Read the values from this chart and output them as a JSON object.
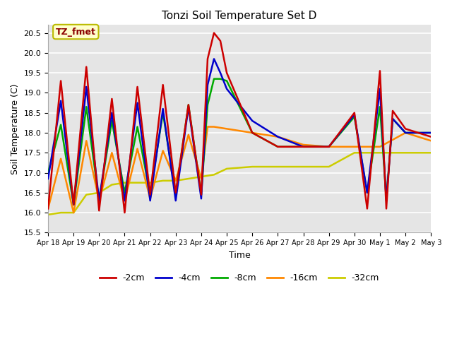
{
  "title": "Tonzi Soil Temperature Set D",
  "xlabel": "Time",
  "ylabel": "Soil Temperature (C)",
  "ylim": [
    15.5,
    20.7
  ],
  "background_color": "#e5e5e5",
  "annotation_text": "TZ_fmet",
  "annotation_bg": "#ffffcc",
  "annotation_border": "#bbbb00",
  "legend_entries": [
    "-2cm",
    "-4cm",
    "-8cm",
    "-16cm",
    "-32cm"
  ],
  "legend_colors": [
    "#cc0000",
    "#0000cc",
    "#00aa00",
    "#ff8800",
    "#cccc00"
  ],
  "xtick_labels": [
    "Apr 18",
    "Apr 19",
    "Apr 20",
    "Apr 21",
    "Apr 22",
    "Apr 23",
    "Apr 24",
    "Apr 25",
    "Apr 26",
    "Apr 27",
    "Apr 28",
    "Apr 29",
    "Apr 30",
    "May 1",
    "May 2",
    "May 3"
  ],
  "red_x": [
    0,
    0.5,
    1,
    1.5,
    2,
    2.5,
    3,
    3.5,
    4,
    4.5,
    5,
    5.5,
    6,
    6.25,
    6.5,
    6.75,
    7,
    8,
    9,
    10,
    11,
    12,
    12.5,
    13,
    13.25,
    13.5,
    14,
    14.5,
    15
  ],
  "red_y": [
    16.1,
    19.3,
    16.2,
    19.65,
    16.05,
    18.85,
    16.0,
    19.15,
    16.45,
    19.2,
    16.5,
    18.7,
    16.45,
    19.85,
    20.5,
    20.3,
    19.5,
    18.0,
    17.65,
    17.65,
    17.65,
    18.5,
    16.1,
    19.55,
    16.1,
    18.55,
    18.1,
    18.0,
    17.9
  ],
  "blue_x": [
    0,
    0.5,
    1,
    1.5,
    2,
    2.5,
    3,
    3.5,
    4,
    4.5,
    5,
    5.5,
    6,
    6.25,
    6.5,
    6.75,
    7,
    8,
    9,
    10,
    11,
    12,
    12.5,
    13,
    13.25,
    13.5,
    14,
    14.5,
    15
  ],
  "blue_y": [
    16.85,
    18.8,
    16.2,
    19.15,
    16.3,
    18.5,
    16.3,
    18.75,
    16.3,
    18.6,
    16.3,
    18.65,
    16.35,
    19.2,
    19.85,
    19.5,
    19.1,
    18.3,
    17.9,
    17.65,
    17.65,
    18.45,
    16.5,
    19.1,
    16.3,
    18.35,
    18.0,
    18.0,
    18.0
  ],
  "green_x": [
    0,
    0.5,
    1,
    1.5,
    2,
    2.5,
    3,
    3.5,
    4,
    4.5,
    5,
    5.5,
    6,
    6.25,
    6.5,
    6.75,
    7,
    8,
    9,
    10,
    11,
    12,
    12.5,
    13,
    13.25,
    13.5,
    14,
    14.5,
    15
  ],
  "green_y": [
    17.0,
    18.2,
    16.2,
    18.65,
    16.3,
    18.3,
    16.5,
    18.15,
    16.45,
    18.5,
    16.45,
    18.7,
    16.45,
    18.7,
    19.35,
    19.35,
    19.3,
    18.0,
    17.65,
    17.65,
    17.65,
    18.4,
    16.5,
    18.65,
    16.35,
    18.35,
    18.0,
    18.0,
    18.0
  ],
  "orange_x": [
    0,
    0.5,
    1,
    1.5,
    2,
    2.5,
    3,
    3.5,
    4,
    4.5,
    5,
    5.5,
    6,
    6.25,
    6.5,
    7,
    8,
    9,
    10,
    11,
    12,
    13,
    14,
    15
  ],
  "orange_y": [
    16.1,
    17.35,
    16.0,
    17.8,
    16.3,
    17.5,
    16.3,
    17.6,
    16.35,
    17.55,
    16.8,
    17.95,
    16.85,
    18.15,
    18.15,
    18.1,
    18.0,
    17.9,
    17.7,
    17.65,
    17.65,
    17.65,
    18.0,
    17.8
  ],
  "yellow_x": [
    0,
    0.5,
    1,
    1.5,
    2,
    2.5,
    3,
    3.5,
    4,
    4.5,
    5,
    5.5,
    6,
    6.5,
    7,
    8,
    9,
    10,
    11,
    12,
    13,
    14,
    15
  ],
  "yellow_y": [
    15.95,
    16.0,
    16.0,
    16.45,
    16.5,
    16.7,
    16.75,
    16.75,
    16.75,
    16.8,
    16.8,
    16.85,
    16.9,
    16.95,
    17.1,
    17.15,
    17.15,
    17.15,
    17.15,
    17.5,
    17.5,
    17.5,
    17.5
  ]
}
